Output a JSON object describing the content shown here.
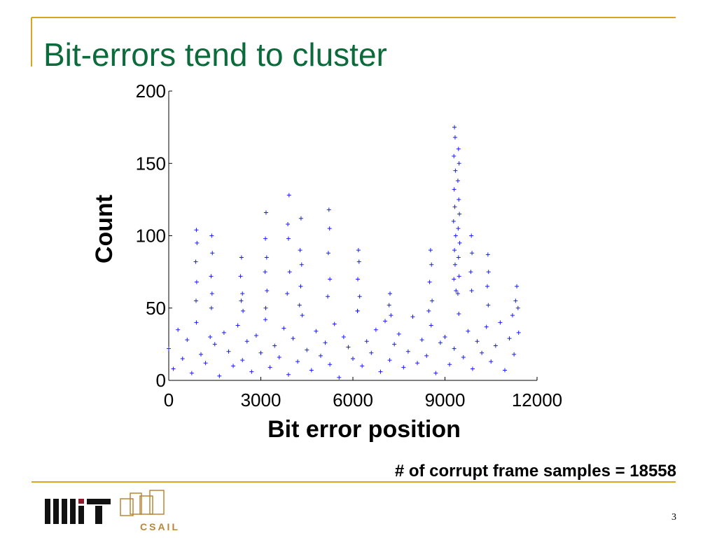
{
  "chart_data": {
    "type": "scatter",
    "title": "Bit-errors tend to cluster",
    "x_label": "Bit error position",
    "y_label": "Count",
    "annotation": "# of corrupt frame samples = 18558",
    "marker": "+",
    "color": "#1a1aff",
    "xlim": [
      0,
      12000
    ],
    "xticks": [
      0,
      3000,
      6000,
      9000,
      12000
    ],
    "ylim": [
      0,
      200
    ],
    "yticks": [
      0,
      50,
      100,
      150,
      200
    ],
    "x": [
      0,
      150,
      300,
      450,
      600,
      750,
      900,
      1050,
      1200,
      1350,
      1500,
      1650,
      1800,
      1950,
      2100,
      2250,
      2400,
      2550,
      2700,
      2850,
      3000,
      3150,
      3300,
      3450,
      3600,
      3750,
      3900,
      4050,
      4200,
      4350,
      4500,
      4650,
      4800,
      4950,
      5100,
      5250,
      5400,
      5550,
      5700,
      5850,
      6000,
      6150,
      6300,
      6450,
      6600,
      6750,
      6900,
      7050,
      7200,
      7350,
      7500,
      7650,
      7800,
      7950,
      8100,
      8250,
      8400,
      8550,
      8700,
      8850,
      9000,
      9150,
      9300,
      9450,
      9600,
      9750,
      9900,
      10050,
      10200,
      10350,
      10500,
      10650,
      10800,
      10950,
      11100,
      11250,
      11400,
      900,
      920,
      880,
      910,
      890,
      1400,
      1420,
      1380,
      1410,
      1390,
      2370,
      2340,
      2400,
      2360,
      2420,
      3170,
      3150,
      3190,
      3140,
      3200,
      3160,
      3920,
      3880,
      3900,
      3940,
      3860,
      4310,
      4280,
      4330,
      4300,
      4260,
      5220,
      5240,
      5200,
      5250,
      5180,
      6180,
      6200,
      6160,
      6220,
      6150,
      7210,
      7180,
      7240,
      8530,
      8560,
      8500,
      8580,
      8470,
      9310,
      9330,
      9290,
      9340,
      9300,
      9320,
      9280,
      9350,
      9310,
      9330,
      9290,
      9360,
      9440,
      9460,
      9420,
      9450,
      9470,
      9430,
      9480,
      9440,
      9460,
      9420,
      9860,
      9880,
      9840,
      9870,
      10400,
      10420,
      10380,
      10410,
      11340,
      11300,
      11380,
      11200
    ],
    "values": [
      22,
      8,
      35,
      15,
      28,
      5,
      40,
      18,
      12,
      30,
      25,
      3,
      33,
      20,
      10,
      38,
      14,
      27,
      6,
      31,
      19,
      42,
      9,
      24,
      16,
      36,
      4,
      29,
      13,
      45,
      21,
      7,
      34,
      17,
      26,
      11,
      39,
      2,
      30,
      23,
      15,
      48,
      10,
      27,
      19,
      35,
      6,
      41,
      14,
      25,
      32,
      9,
      20,
      44,
      12,
      28,
      17,
      38,
      5,
      26,
      30,
      11,
      22,
      46,
      16,
      34,
      8,
      27,
      19,
      37,
      13,
      24,
      40,
      7,
      29,
      18,
      33,
      104,
      95,
      82,
      68,
      55,
      100,
      88,
      72,
      60,
      50,
      85,
      72,
      60,
      55,
      48,
      116,
      98,
      85,
      75,
      62,
      50,
      128,
      108,
      98,
      75,
      60,
      112,
      90,
      80,
      65,
      52,
      118,
      105,
      88,
      70,
      58,
      90,
      82,
      70,
      58,
      48,
      60,
      52,
      45,
      90,
      80,
      68,
      55,
      48,
      175,
      168,
      155,
      145,
      132,
      120,
      110,
      100,
      90,
      80,
      70,
      62,
      160,
      150,
      138,
      125,
      115,
      105,
      95,
      85,
      72,
      60,
      100,
      88,
      75,
      62,
      87,
      75,
      65,
      52,
      65,
      55,
      50,
      45
    ]
  },
  "footer": {
    "logo_text": "CSAIL",
    "page_number": "3"
  }
}
